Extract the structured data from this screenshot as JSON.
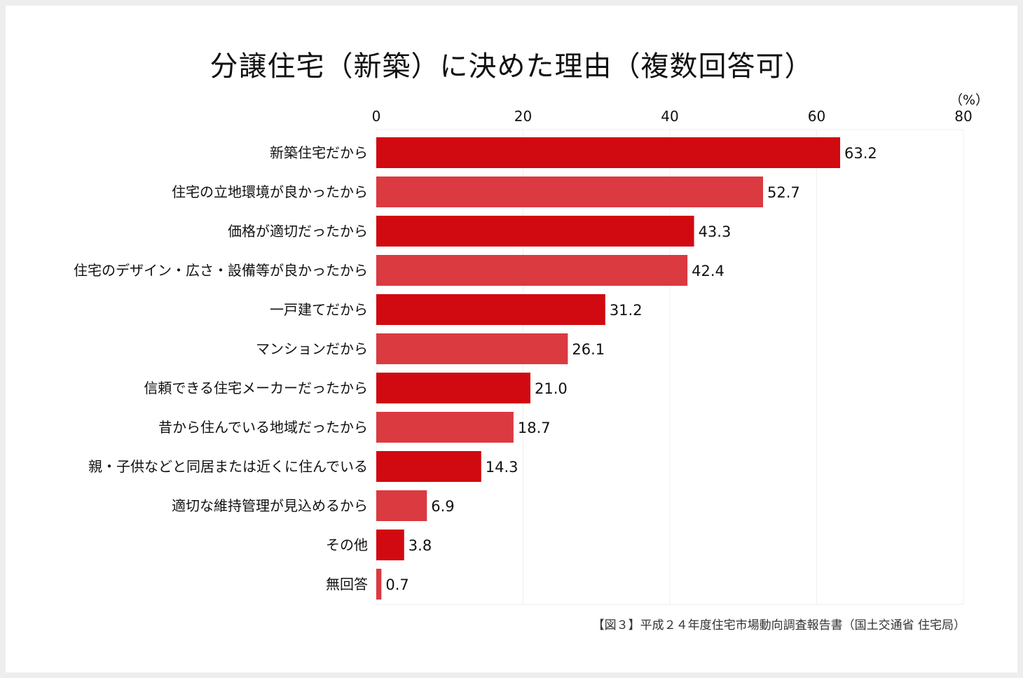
{
  "chart_data": {
    "type": "bar",
    "orientation": "horizontal",
    "title": "分譲住宅（新築）に決めた理由（複数回答可）",
    "unit_label": "（%）",
    "xlim": [
      0,
      80
    ],
    "xticks": [
      0,
      20,
      40,
      60,
      80
    ],
    "grid": true,
    "categories": [
      "新築住宅だから",
      "住宅の立地環境が良かったから",
      "価格が適切だったから",
      "住宅のデザイン・広さ・設備等が良かったから",
      "一戸建てだから",
      "マンションだから",
      "信頼できる住宅メーカーだったから",
      "昔から住んでいる地域だったから",
      "親・子供などと同居または近くに住んでいる",
      "適切な維持管理が見込めるから",
      "その他",
      "無回答"
    ],
    "values": [
      63.2,
      52.7,
      43.3,
      42.4,
      31.2,
      26.1,
      21.0,
      18.7,
      14.3,
      6.9,
      3.8,
      0.7
    ],
    "value_labels": [
      "63.2",
      "52.7",
      "43.3",
      "42.4",
      "31.2",
      "26.1",
      "21.0",
      "18.7",
      "14.3",
      "6.9",
      "3.8",
      "0.7"
    ],
    "colors": [
      "#d10a11",
      "#da3a40"
    ],
    "source": "【図３】平成２４年度住宅市場動向調査報告書（国土交通省 住宅局）"
  }
}
